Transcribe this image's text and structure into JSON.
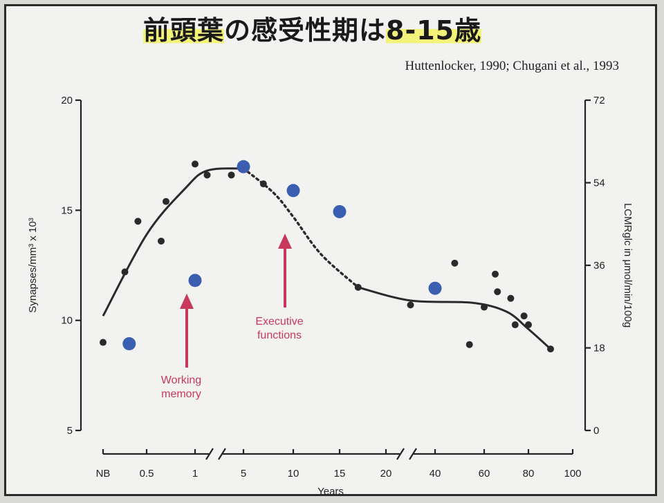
{
  "title": {
    "part1": "前頭葉",
    "part2": "の感受性期は",
    "part3": "8-15歳"
  },
  "citation": "Huttenlocker, 1990; Chugani et al., 1993",
  "chart_data": {
    "type": "scatter",
    "xlabel": "Years",
    "ylabel_left": "Synapses/mm³ x 10³",
    "ylabel_right": "LCMRglc in μmol/min/100g",
    "x_tick_labels": [
      "NB",
      "0.5",
      "1",
      "5",
      "10",
      "15",
      "20",
      "40",
      "60",
      "80",
      "100"
    ],
    "y_left": {
      "range": [
        5,
        20
      ],
      "ticks": [
        "5",
        "10",
        "15",
        "20"
      ]
    },
    "y_right": {
      "range": [
        0,
        72
      ],
      "ticks": [
        "0",
        "18",
        "36",
        "54",
        "72"
      ]
    },
    "series": [
      {
        "role": "synapse_density",
        "color": "#2a2a2a",
        "points": [
          {
            "x": "NB",
            "y": 9.0
          },
          {
            "x": "0.25",
            "y": 12.2
          },
          {
            "x": "0.4",
            "y": 14.5
          },
          {
            "x": "0.65",
            "y": 13.6
          },
          {
            "x": "0.7",
            "y": 15.4
          },
          {
            "x": "1",
            "y": 17.1
          },
          {
            "x": "2",
            "y": 16.6
          },
          {
            "x": "4",
            "y": 16.6
          },
          {
            "x": "7",
            "y": 16.2
          },
          {
            "x": "17",
            "y": 11.5
          },
          {
            "x": "30",
            "y": 10.7
          },
          {
            "x": "48",
            "y": 12.6
          },
          {
            "x": "54",
            "y": 8.9
          },
          {
            "x": "60",
            "y": 10.6
          },
          {
            "x": "65",
            "y": 12.1
          },
          {
            "x": "66",
            "y": 11.3
          },
          {
            "x": "72",
            "y": 11.0
          },
          {
            "x": "74",
            "y": 9.8
          },
          {
            "x": "78",
            "y": 10.2
          },
          {
            "x": "80",
            "y": 9.8
          },
          {
            "x": "90",
            "y": 8.7
          }
        ]
      },
      {
        "role": "glucose_metabolism",
        "color": "#3a5fb0",
        "points": [
          {
            "x": "0.3",
            "y": 18.9
          },
          {
            "x": "1",
            "y": 32.7
          },
          {
            "x": "5",
            "y": 57.5
          },
          {
            "x": "10",
            "y": 52.3
          },
          {
            "x": "15",
            "y": 47.7
          },
          {
            "x": "40",
            "y": 31.0
          }
        ]
      }
    ],
    "trend_curve": {
      "color": "#2a2a2a",
      "dashed_between_x": [
        "5",
        "17"
      ],
      "points": [
        {
          "x": "NB",
          "y": 10.2
        },
        {
          "x": "0.5",
          "y": 13.9
        },
        {
          "x": "0.9",
          "y": 16.0
        },
        {
          "x": "2",
          "y": 16.8
        },
        {
          "x": "5",
          "y": 16.9
        },
        {
          "x": "8",
          "y": 15.8
        },
        {
          "x": "10",
          "y": 14.7
        },
        {
          "x": "13",
          "y": 13.0
        },
        {
          "x": "17",
          "y": 11.5
        },
        {
          "x": "30",
          "y": 10.9
        },
        {
          "x": "55",
          "y": 10.8
        },
        {
          "x": "70",
          "y": 10.4
        },
        {
          "x": "80",
          "y": 9.6
        },
        {
          "x": "90",
          "y": 8.7
        }
      ]
    },
    "annotations": [
      {
        "lines": [
          "Working",
          "memory"
        ],
        "points_to_x": "1",
        "color": "#c8385a"
      },
      {
        "lines": [
          "Executive",
          "functions"
        ],
        "points_to_x": "10",
        "color": "#c8385a"
      }
    ]
  }
}
